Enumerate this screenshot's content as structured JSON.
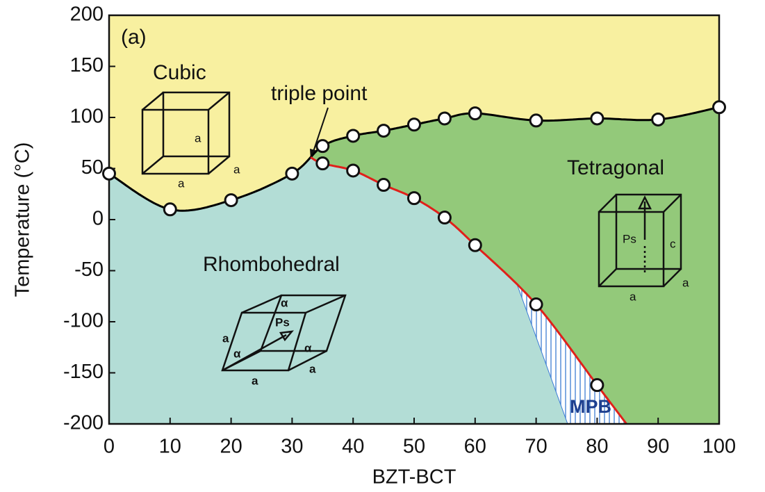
{
  "chart_data": {
    "type": "scatter",
    "xlabel": "BZT-BCT",
    "ylabel": "Temperature (°C)",
    "xlim": [
      0,
      100
    ],
    "xticks": [
      0,
      10,
      20,
      30,
      40,
      50,
      60,
      70,
      80,
      90,
      100
    ],
    "ylim": [
      -200,
      200
    ],
    "yticks": [
      -200,
      -150,
      -100,
      -50,
      0,
      50,
      100,
      150,
      200
    ],
    "series": [
      {
        "color": "#000000",
        "x": [
          0,
          10,
          20,
          30,
          35,
          40,
          45,
          50,
          55,
          60,
          70,
          80,
          90,
          100
        ],
        "values": [
          45,
          10,
          19,
          45,
          72,
          82,
          87,
          93,
          99,
          104,
          97,
          99,
          98,
          110
        ]
      },
      {
        "color": "#e0201a",
        "x": [
          35,
          40,
          45,
          50,
          55,
          60,
          70,
          80
        ],
        "values": [
          55,
          48,
          34,
          21,
          2,
          -25,
          -83,
          -162
        ]
      }
    ],
    "panel_label": "(a)",
    "annotations": {
      "cubic": "Cubic",
      "triple_point": "triple point",
      "tetragonal": "Tetragonal",
      "rhombohedral": "Rhombohedral",
      "mpb": "MPB"
    },
    "region_colors": {
      "cubic": "#f8f0a0",
      "tetragonal": "#93c97a",
      "rhombohedral": "#b3ddd6",
      "mpb": "#3a7bd5"
    },
    "cubic_cell": [
      "a",
      "a",
      "a"
    ],
    "tetragonal_cell": [
      "Ps",
      "c",
      "a",
      "a"
    ],
    "rhombohedral_cell": [
      "α",
      "α",
      "α",
      "Ps",
      "a",
      "a",
      "a"
    ]
  }
}
